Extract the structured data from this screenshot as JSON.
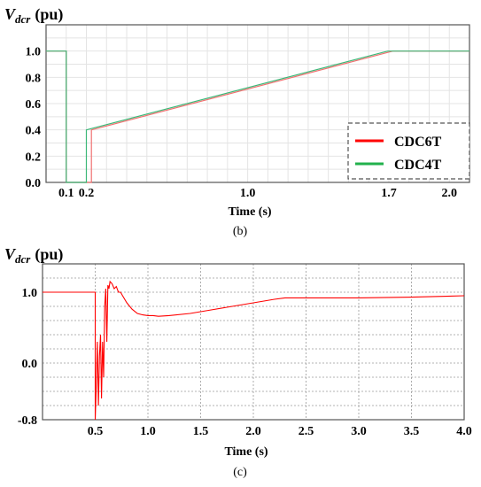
{
  "chart_data": [
    {
      "type": "line",
      "panel_label": "(b)",
      "ylabel_main": "V",
      "ylabel_sub": "dcr",
      "ylabel_unit": "(pu)",
      "xlabel": "Time (s)",
      "xlim": [
        0,
        2.1
      ],
      "ylim": [
        0,
        1.2
      ],
      "x_tick_labels": [
        {
          "value": 0.1,
          "label": "0.1"
        },
        {
          "value": 0.2,
          "label": "0.2"
        },
        {
          "value": 1.0,
          "label": "1.0"
        },
        {
          "value": 1.7,
          "label": "1.7"
        },
        {
          "value": 2.0,
          "label": "2.0"
        }
      ],
      "y_tick_labels": [
        {
          "value": 0.0,
          "label": "0.0"
        },
        {
          "value": 0.2,
          "label": "0.2"
        },
        {
          "value": 0.4,
          "label": "0.4"
        },
        {
          "value": 0.6,
          "label": "0.6"
        },
        {
          "value": 0.8,
          "label": "0.8"
        },
        {
          "value": 1.0,
          "label": "1.0"
        }
      ],
      "grid": true,
      "legend_position": "bottom-right",
      "series": [
        {
          "name": "CDC6T",
          "color": "#f07070",
          "legend_color": "#ff0000",
          "x": [
            0,
            0.1,
            0.1,
            0.225,
            0.225,
            1.72,
            2.1
          ],
          "y": [
            1.0,
            1.0,
            0.0,
            0.0,
            0.4,
            1.0,
            1.0
          ]
        },
        {
          "name": "CDC4T",
          "color": "#3cb878",
          "legend_color": "#22b14c",
          "x": [
            0,
            0.1,
            0.1,
            0.2,
            0.2,
            1.695,
            2.1
          ],
          "y": [
            1.0,
            1.0,
            0.0,
            0.0,
            0.4,
            1.0,
            1.0
          ]
        }
      ]
    },
    {
      "type": "line",
      "panel_label": "(c)",
      "ylabel_main": "V",
      "ylabel_sub": "dcr",
      "ylabel_unit": "(pu)",
      "xlabel": "Time (s)",
      "xlim": [
        0,
        4.0
      ],
      "ylim": [
        -0.8,
        1.4
      ],
      "x_tick_labels": [
        {
          "value": 0.5,
          "label": "0.5"
        },
        {
          "value": 1.0,
          "label": "1.0"
        },
        {
          "value": 1.5,
          "label": "1.5"
        },
        {
          "value": 2.0,
          "label": "2.0"
        },
        {
          "value": 2.5,
          "label": "2.5"
        },
        {
          "value": 3.0,
          "label": "3.0"
        },
        {
          "value": 3.5,
          "label": "3.5"
        },
        {
          "value": 4.0,
          "label": "4.0"
        }
      ],
      "y_tick_labels": [
        {
          "value": -0.8,
          "label": "-0.8"
        },
        {
          "value": 0.0,
          "label": "0.0"
        },
        {
          "value": 1.0,
          "label": "1.0"
        }
      ],
      "grid": true,
      "series": [
        {
          "color": "#ff0000",
          "x": [
            0,
            0.5,
            0.5,
            0.51,
            0.52,
            0.53,
            0.54,
            0.55,
            0.56,
            0.57,
            0.58,
            0.59,
            0.6,
            0.61,
            0.62,
            0.63,
            0.64,
            0.66,
            0.68,
            0.7,
            0.72,
            0.74,
            0.76,
            0.8,
            0.85,
            0.9,
            0.95,
            1.0,
            1.05,
            1.1,
            1.2,
            1.4,
            1.6,
            1.8,
            2.0,
            2.2,
            2.3,
            2.5,
            3.0,
            3.5,
            4.0
          ],
          "y": [
            1.0,
            1.0,
            -0.8,
            -0.3,
            0.3,
            -0.6,
            0.1,
            0.4,
            -0.5,
            0.3,
            -0.2,
            0.8,
            1.05,
            0.3,
            1.1,
            1.05,
            1.15,
            1.12,
            1.05,
            1.08,
            1.0,
            1.0,
            0.95,
            0.85,
            0.76,
            0.7,
            0.68,
            0.67,
            0.67,
            0.66,
            0.67,
            0.7,
            0.75,
            0.8,
            0.85,
            0.9,
            0.92,
            0.92,
            0.92,
            0.93,
            0.95
          ]
        }
      ]
    }
  ]
}
